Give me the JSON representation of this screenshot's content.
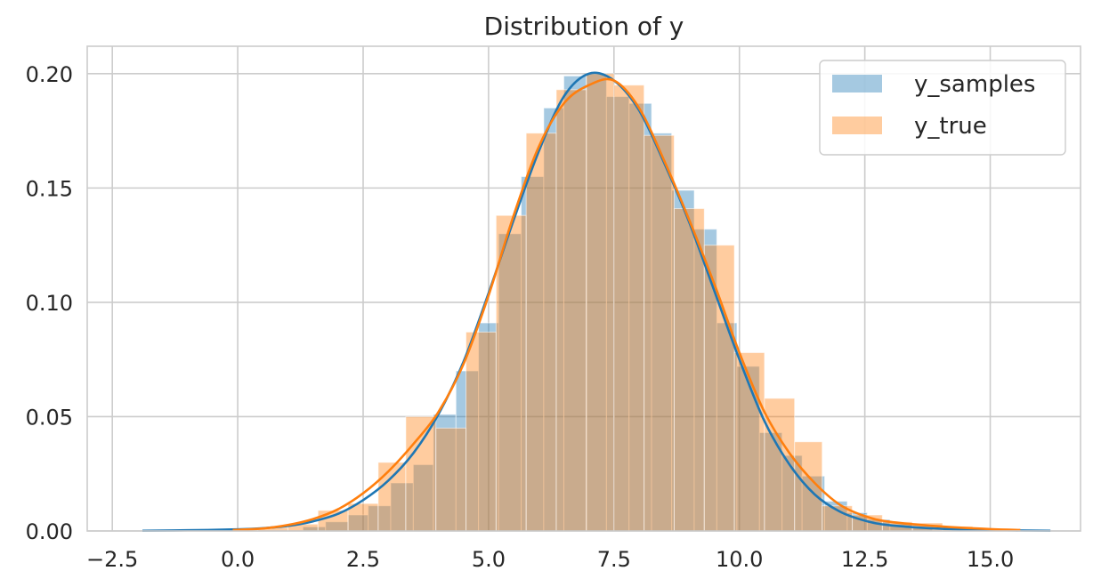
{
  "chart_data": {
    "type": "histogram",
    "title": "Distribution of y",
    "xlabel": "",
    "ylabel": "",
    "xlim": [
      -3.0,
      16.8
    ],
    "ylim": [
      0,
      0.212
    ],
    "xticks": [
      -2.5,
      0.0,
      2.5,
      5.0,
      7.5,
      10.0,
      12.5,
      15.0
    ],
    "xtick_labels": [
      "−2.5",
      "0.0",
      "2.5",
      "5.0",
      "7.5",
      "10.0",
      "12.5",
      "15.0"
    ],
    "yticks": [
      0.0,
      0.05,
      0.1,
      0.15,
      0.2
    ],
    "ytick_labels": [
      "0.00",
      "0.05",
      "0.10",
      "0.15",
      "0.20"
    ],
    "grid": true,
    "legend": {
      "placement": "top-right"
    },
    "series": [
      {
        "name": "y_samples",
        "color": "#1f77b4",
        "bars": [
          {
            "x0": 1.3,
            "x1": 1.75,
            "y": 0.0018
          },
          {
            "x0": 1.75,
            "x1": 2.2,
            "y": 0.004
          },
          {
            "x0": 2.2,
            "x1": 2.6,
            "y": 0.007
          },
          {
            "x0": 2.6,
            "x1": 3.05,
            "y": 0.011
          },
          {
            "x0": 3.05,
            "x1": 3.5,
            "y": 0.021
          },
          {
            "x0": 3.5,
            "x1": 3.9,
            "y": 0.029
          },
          {
            "x0": 3.9,
            "x1": 4.35,
            "y": 0.051
          },
          {
            "x0": 4.35,
            "x1": 4.8,
            "y": 0.07
          },
          {
            "x0": 4.8,
            "x1": 5.2,
            "y": 0.091
          },
          {
            "x0": 5.2,
            "x1": 5.65,
            "y": 0.13
          },
          {
            "x0": 5.65,
            "x1": 6.1,
            "y": 0.155
          },
          {
            "x0": 6.1,
            "x1": 6.5,
            "y": 0.185
          },
          {
            "x0": 6.5,
            "x1": 6.95,
            "y": 0.199
          },
          {
            "x0": 6.95,
            "x1": 7.35,
            "y": 0.2
          },
          {
            "x0": 7.35,
            "x1": 7.8,
            "y": 0.19
          },
          {
            "x0": 7.8,
            "x1": 8.25,
            "y": 0.187
          },
          {
            "x0": 8.25,
            "x1": 8.65,
            "y": 0.174
          },
          {
            "x0": 8.65,
            "x1": 9.1,
            "y": 0.149
          },
          {
            "x0": 9.1,
            "x1": 9.55,
            "y": 0.132
          },
          {
            "x0": 9.55,
            "x1": 9.95,
            "y": 0.091
          },
          {
            "x0": 9.95,
            "x1": 10.4,
            "y": 0.072
          },
          {
            "x0": 10.4,
            "x1": 10.85,
            "y": 0.043
          },
          {
            "x0": 10.85,
            "x1": 11.25,
            "y": 0.033
          },
          {
            "x0": 11.25,
            "x1": 11.7,
            "y": 0.024
          },
          {
            "x0": 11.7,
            "x1": 12.15,
            "y": 0.013
          },
          {
            "x0": 12.15,
            "x1": 12.55,
            "y": 0.008
          },
          {
            "x0": 12.55,
            "x1": 13.0,
            "y": 0.005
          },
          {
            "x0": 13.0,
            "x1": 13.45,
            "y": 0.003
          },
          {
            "x0": 13.45,
            "x1": 13.85,
            "y": 0.0015
          }
        ],
        "kde": [
          [
            -1.9,
            0.0001
          ],
          [
            -1.0,
            0.0003
          ],
          [
            0.0,
            0.0007
          ],
          [
            0.5,
            0.0012
          ],
          [
            1.0,
            0.0022
          ],
          [
            1.5,
            0.0042
          ],
          [
            2.0,
            0.0075
          ],
          [
            2.5,
            0.0135
          ],
          [
            3.0,
            0.022
          ],
          [
            3.5,
            0.034
          ],
          [
            4.0,
            0.051
          ],
          [
            4.5,
            0.074
          ],
          [
            5.0,
            0.104
          ],
          [
            5.5,
            0.136
          ],
          [
            6.0,
            0.166
          ],
          [
            6.5,
            0.19
          ],
          [
            7.0,
            0.2
          ],
          [
            7.5,
            0.197
          ],
          [
            8.0,
            0.184
          ],
          [
            8.5,
            0.161
          ],
          [
            9.0,
            0.135
          ],
          [
            9.5,
            0.105
          ],
          [
            10.0,
            0.075
          ],
          [
            10.5,
            0.048
          ],
          [
            11.0,
            0.029
          ],
          [
            11.5,
            0.016
          ],
          [
            12.0,
            0.0085
          ],
          [
            12.5,
            0.0045
          ],
          [
            13.0,
            0.0025
          ],
          [
            14.0,
            0.001
          ],
          [
            15.0,
            0.0004
          ],
          [
            16.2,
            0.0001
          ]
        ]
      },
      {
        "name": "y_true",
        "color": "#ff7f0e",
        "bars": [
          {
            "x0": -0.2,
            "x1": 0.4,
            "y": 0.0005
          },
          {
            "x0": 0.4,
            "x1": 1.0,
            "y": 0.0015
          },
          {
            "x0": 1.0,
            "x1": 1.6,
            "y": 0.003
          },
          {
            "x0": 1.6,
            "x1": 2.2,
            "y": 0.009
          },
          {
            "x0": 2.2,
            "x1": 2.8,
            "y": 0.012
          },
          {
            "x0": 2.8,
            "x1": 3.35,
            "y": 0.03
          },
          {
            "x0": 3.35,
            "x1": 3.95,
            "y": 0.05
          },
          {
            "x0": 3.95,
            "x1": 4.55,
            "y": 0.045
          },
          {
            "x0": 4.55,
            "x1": 5.15,
            "y": 0.087
          },
          {
            "x0": 5.15,
            "x1": 5.75,
            "y": 0.138
          },
          {
            "x0": 5.75,
            "x1": 6.35,
            "y": 0.174
          },
          {
            "x0": 6.35,
            "x1": 6.95,
            "y": 0.193
          },
          {
            "x0": 6.95,
            "x1": 7.5,
            "y": 0.2
          },
          {
            "x0": 7.5,
            "x1": 8.1,
            "y": 0.195
          },
          {
            "x0": 8.1,
            "x1": 8.7,
            "y": 0.173
          },
          {
            "x0": 8.7,
            "x1": 9.3,
            "y": 0.141
          },
          {
            "x0": 9.3,
            "x1": 9.9,
            "y": 0.125
          },
          {
            "x0": 9.9,
            "x1": 10.5,
            "y": 0.078
          },
          {
            "x0": 10.5,
            "x1": 11.1,
            "y": 0.058
          },
          {
            "x0": 11.1,
            "x1": 11.65,
            "y": 0.039
          },
          {
            "x0": 11.65,
            "x1": 12.25,
            "y": 0.011
          },
          {
            "x0": 12.25,
            "x1": 12.85,
            "y": 0.007
          },
          {
            "x0": 12.85,
            "x1": 13.45,
            "y": 0.004
          },
          {
            "x0": 13.45,
            "x1": 14.05,
            "y": 0.0035
          },
          {
            "x0": 14.05,
            "x1": 14.65,
            "y": 0.002
          },
          {
            "x0": 14.65,
            "x1": 15.25,
            "y": 0.001
          }
        ],
        "kde": [
          [
            -0.1,
            0.0004
          ],
          [
            0.5,
            0.0011
          ],
          [
            1.0,
            0.0026
          ],
          [
            1.5,
            0.0052
          ],
          [
            2.0,
            0.0095
          ],
          [
            2.5,
            0.0165
          ],
          [
            3.0,
            0.026
          ],
          [
            3.5,
            0.038
          ],
          [
            4.0,
            0.052
          ],
          [
            4.5,
            0.073
          ],
          [
            5.0,
            0.103
          ],
          [
            5.5,
            0.138
          ],
          [
            6.0,
            0.168
          ],
          [
            6.5,
            0.187
          ],
          [
            7.0,
            0.195
          ],
          [
            7.5,
            0.197
          ],
          [
            8.0,
            0.185
          ],
          [
            8.5,
            0.162
          ],
          [
            9.0,
            0.136
          ],
          [
            9.5,
            0.108
          ],
          [
            10.0,
            0.078
          ],
          [
            10.5,
            0.052
          ],
          [
            11.0,
            0.034
          ],
          [
            11.5,
            0.021
          ],
          [
            12.0,
            0.0115
          ],
          [
            12.5,
            0.0065
          ],
          [
            13.0,
            0.004
          ],
          [
            14.0,
            0.002
          ],
          [
            15.0,
            0.0008
          ],
          [
            15.6,
            0.0004
          ]
        ]
      }
    ]
  }
}
